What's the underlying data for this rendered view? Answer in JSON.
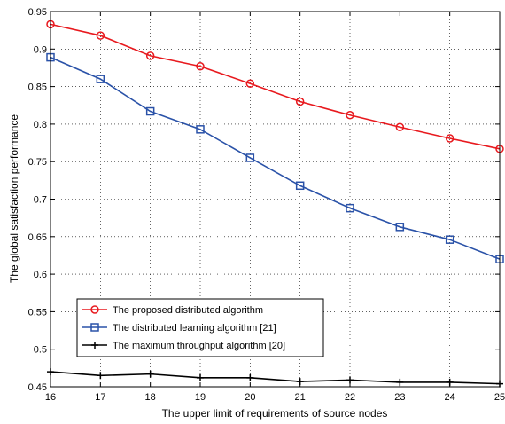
{
  "chart_data": {
    "type": "line",
    "title": "",
    "xlabel": "The upper limit of requirements of source nodes",
    "ylabel": "The global satisfaction performance",
    "x": [
      16,
      17,
      18,
      19,
      20,
      21,
      22,
      23,
      24,
      25
    ],
    "xlim": [
      16,
      25
    ],
    "ylim": [
      0.45,
      0.95
    ],
    "xticks": [
      "16",
      "17",
      "18",
      "19",
      "20",
      "21",
      "22",
      "23",
      "24",
      "25"
    ],
    "yticks": [
      "0.45",
      "0.5",
      "0.55",
      "0.6",
      "0.65",
      "0.7",
      "0.75",
      "0.8",
      "0.85",
      "0.9",
      "0.95"
    ],
    "grid": true,
    "legend_position": "lower-left",
    "series": [
      {
        "name": "The proposed distributed algorithm",
        "color": "#e8191e",
        "marker": "circle",
        "values": [
          0.933,
          0.918,
          0.891,
          0.877,
          0.854,
          0.83,
          0.812,
          0.796,
          0.781,
          0.767
        ]
      },
      {
        "name": "The distributed learning algorithm [21]",
        "color": "#2a52a8",
        "marker": "square",
        "values": [
          0.889,
          0.86,
          0.817,
          0.793,
          0.755,
          0.718,
          0.688,
          0.663,
          0.646,
          0.62
        ]
      },
      {
        "name": "The maximum throughput algorithm [20]",
        "color": "#000000",
        "marker": "plus",
        "values": [
          0.47,
          0.465,
          0.467,
          0.462,
          0.462,
          0.457,
          0.459,
          0.456,
          0.456,
          0.454
        ]
      }
    ]
  }
}
